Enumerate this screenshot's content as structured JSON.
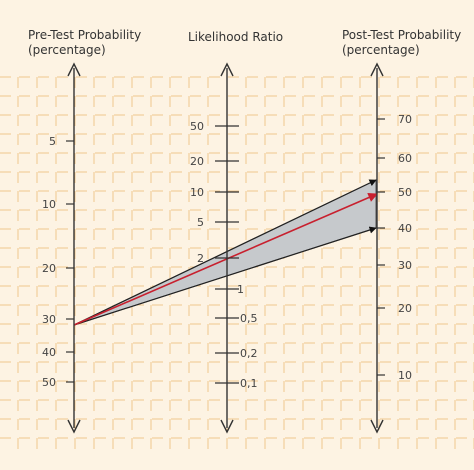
{
  "headers": {
    "pre_line1": "Pre-Test Probability",
    "pre_line2": "(percentage)",
    "lr": "Likelihood Ratio",
    "post_line1": "Post-Test Probability",
    "post_line2": "(percentage)"
  },
  "pre_ticks": [
    "5",
    "10",
    "20",
    "30",
    "40",
    "50"
  ],
  "lr_ticks": [
    "50",
    "20",
    "10",
    "5",
    "2",
    "1",
    "0,5",
    "0,2",
    "0,1"
  ],
  "post_ticks": [
    "70",
    "60",
    "50",
    "40",
    "30",
    "20",
    "10"
  ],
  "colors": {
    "grid": "#f0c78e",
    "background": "#fdf3e3",
    "band": "#c6c9cc",
    "red_arrow": "#c8202e",
    "axis": "#333333"
  }
}
